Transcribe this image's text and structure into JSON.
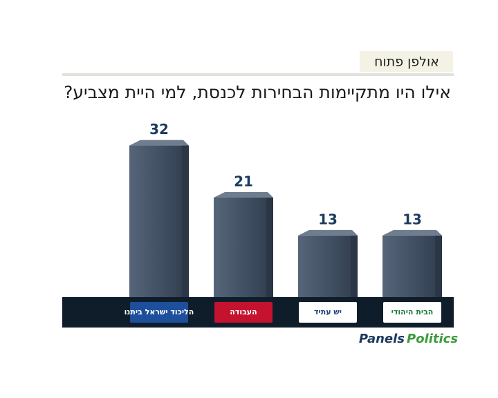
{
  "header": {
    "tab": "אולפן פתוח"
  },
  "chart_data": {
    "type": "bar3d",
    "title": "אילו היו מתקיימות הבחירות לכנסת, למי היית מצביע?",
    "categories": [
      "הליכוד ישראל ביתנו",
      "העבודה",
      "יש עתיד",
      "הבית היהודי"
    ],
    "values": [
      32,
      21,
      13,
      13
    ],
    "color": "#3b4a5c",
    "logo_colors": [
      "#1d4f9c",
      "#c4122f",
      "#ffffff",
      "#ffffff"
    ],
    "logo_text_colors": [
      "#ffffff",
      "#ffffff",
      "#1d3f7a",
      "#1d7a3a"
    ],
    "ylim": [
      0,
      35
    ]
  },
  "brand": {
    "first": "Panels",
    "second": "Politics"
  }
}
